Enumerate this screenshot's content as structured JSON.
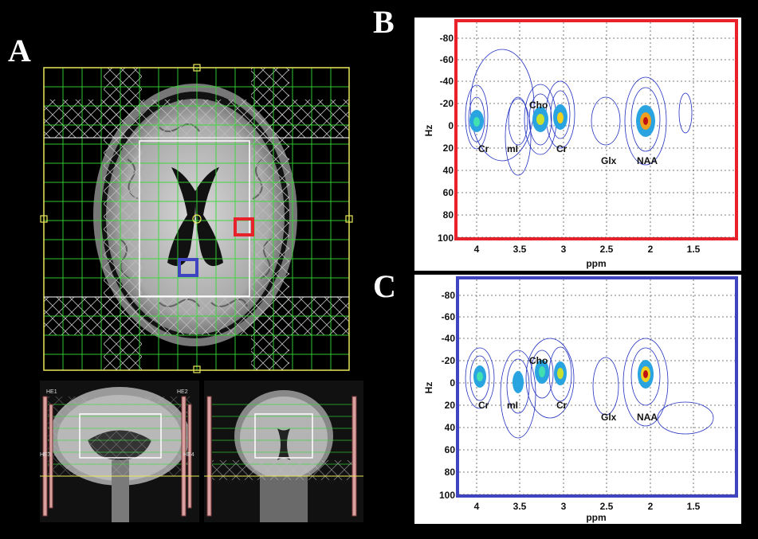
{
  "panels": {
    "a": "A",
    "b": "B",
    "c": "C"
  },
  "colors": {
    "box_red": "#e8212a",
    "box_blue": "#3f44c1",
    "grid_green": "#33dd33",
    "grid_yellow": "#e8e85a"
  },
  "scout_labels": {
    "he1": "HE1",
    "he2": "HE2",
    "he3": "HE3",
    "he4": "HE4"
  },
  "spectra": [
    {
      "id": "B",
      "xlabel": "ppm",
      "ylabel": "Hz",
      "x_ticks": [
        "4",
        "3.5",
        "3",
        "2.5",
        "2",
        "1.5"
      ],
      "y_ticks": [
        "-80",
        "-60",
        "-40",
        "-20",
        "0",
        "20",
        "40",
        "60",
        "80",
        "100"
      ],
      "peak_labels": [
        "Cr",
        "mI",
        "Cr",
        "Glx",
        "NAA",
        "Cho"
      ]
    },
    {
      "id": "C",
      "xlabel": "ppm",
      "ylabel": "Hz",
      "x_ticks": [
        "4",
        "3.5",
        "3",
        "2.5",
        "2",
        "1.5"
      ],
      "y_ticks": [
        "-80",
        "-60",
        "-40",
        "-20",
        "0",
        "20",
        "40",
        "60",
        "80",
        "100"
      ],
      "peak_labels": [
        "Cr",
        "mI",
        "Cr",
        "Glx",
        "NAA",
        "Cho"
      ]
    }
  ]
}
